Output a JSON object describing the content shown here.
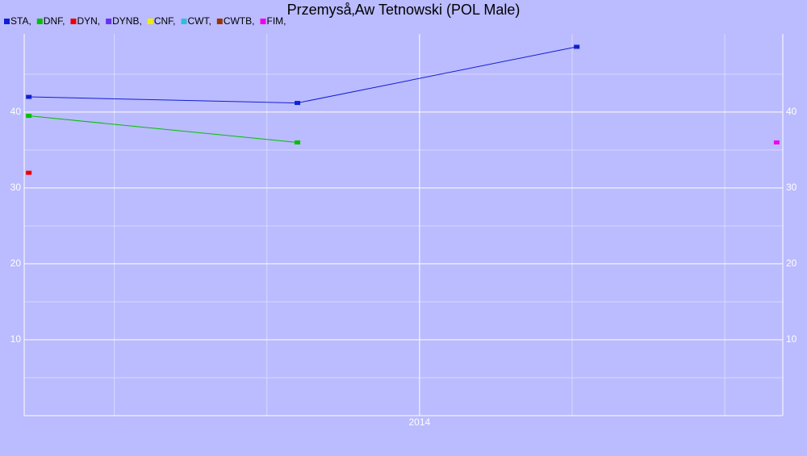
{
  "chart_data": {
    "type": "line",
    "title": "Przemyså‚Aw Tetnowski (POL Male)",
    "x": [
      2011.44,
      2013.2,
      2015.03,
      2016.34
    ],
    "series": [
      {
        "name": "STA,",
        "color": "#1020d0",
        "values": [
          42,
          41.2,
          48.6,
          null
        ]
      },
      {
        "name": "DNF,",
        "color": "#00c000",
        "values": [
          39.5,
          36,
          null,
          null
        ]
      },
      {
        "name": "DYN,",
        "color": "#ee0000",
        "values": [
          32,
          null,
          null,
          null
        ]
      },
      {
        "name": "DYNB,",
        "color": "#6633ee",
        "values": [
          null,
          null,
          null,
          null
        ]
      },
      {
        "name": "CNF,",
        "color": "#eeee00",
        "values": [
          null,
          null,
          null,
          null
        ]
      },
      {
        "name": "CWT,",
        "color": "#33bbdd",
        "values": [
          null,
          null,
          null,
          null
        ]
      },
      {
        "name": "CWTB,",
        "color": "#993300",
        "values": [
          null,
          null,
          null,
          null
        ]
      },
      {
        "name": "FIM,",
        "color": "#ee00ee",
        "values": [
          null,
          null,
          null,
          36
        ]
      }
    ],
    "xlim": [
      2011.41,
      2016.38
    ],
    "xticks": [
      2014
    ],
    "xminor": [
      2012,
      2013,
      2015,
      2016
    ],
    "ylim": [
      0,
      50.3
    ],
    "yticks": [
      10,
      20,
      30,
      40
    ],
    "yminor": [
      5,
      15,
      25,
      35,
      45
    ],
    "grid": true
  }
}
